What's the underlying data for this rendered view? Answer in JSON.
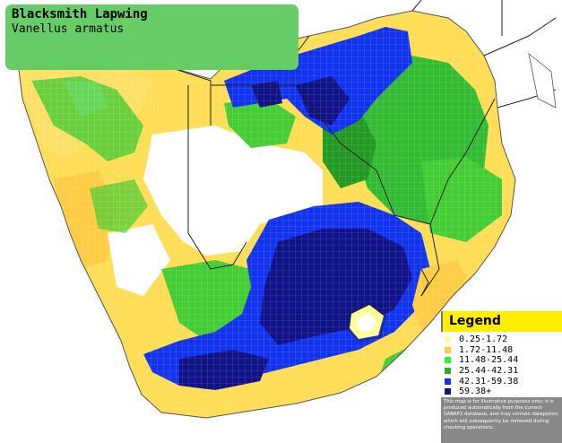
{
  "title": {
    "common_name": "Blacksmith Lapwing",
    "scientific_name": "Vanellus armatus"
  },
  "legend": {
    "heading": "Legend",
    "items": [
      {
        "label": "0.25-1.72",
        "color": "#ffff99"
      },
      {
        "label": "1.72-11.48",
        "color": "#ffcc44"
      },
      {
        "label": "11.48-25.44",
        "color": "#33ee33"
      },
      {
        "label": "25.44-42.31",
        "color": "#33aa33"
      },
      {
        "label": "42.31-59.38",
        "color": "#1133ee"
      },
      {
        "label": "59.38+",
        "color": "#111188"
      }
    ],
    "note": "This map is for illustrative purposes only; it is produced automatically from the current SABAP2 database, and may contain datapoints which will subsequently be removed during checking operations."
  },
  "colors": {
    "unsurveyed": "#ffffff",
    "border": "#222222",
    "coast": "#555555",
    "grid": "#dddddd"
  }
}
